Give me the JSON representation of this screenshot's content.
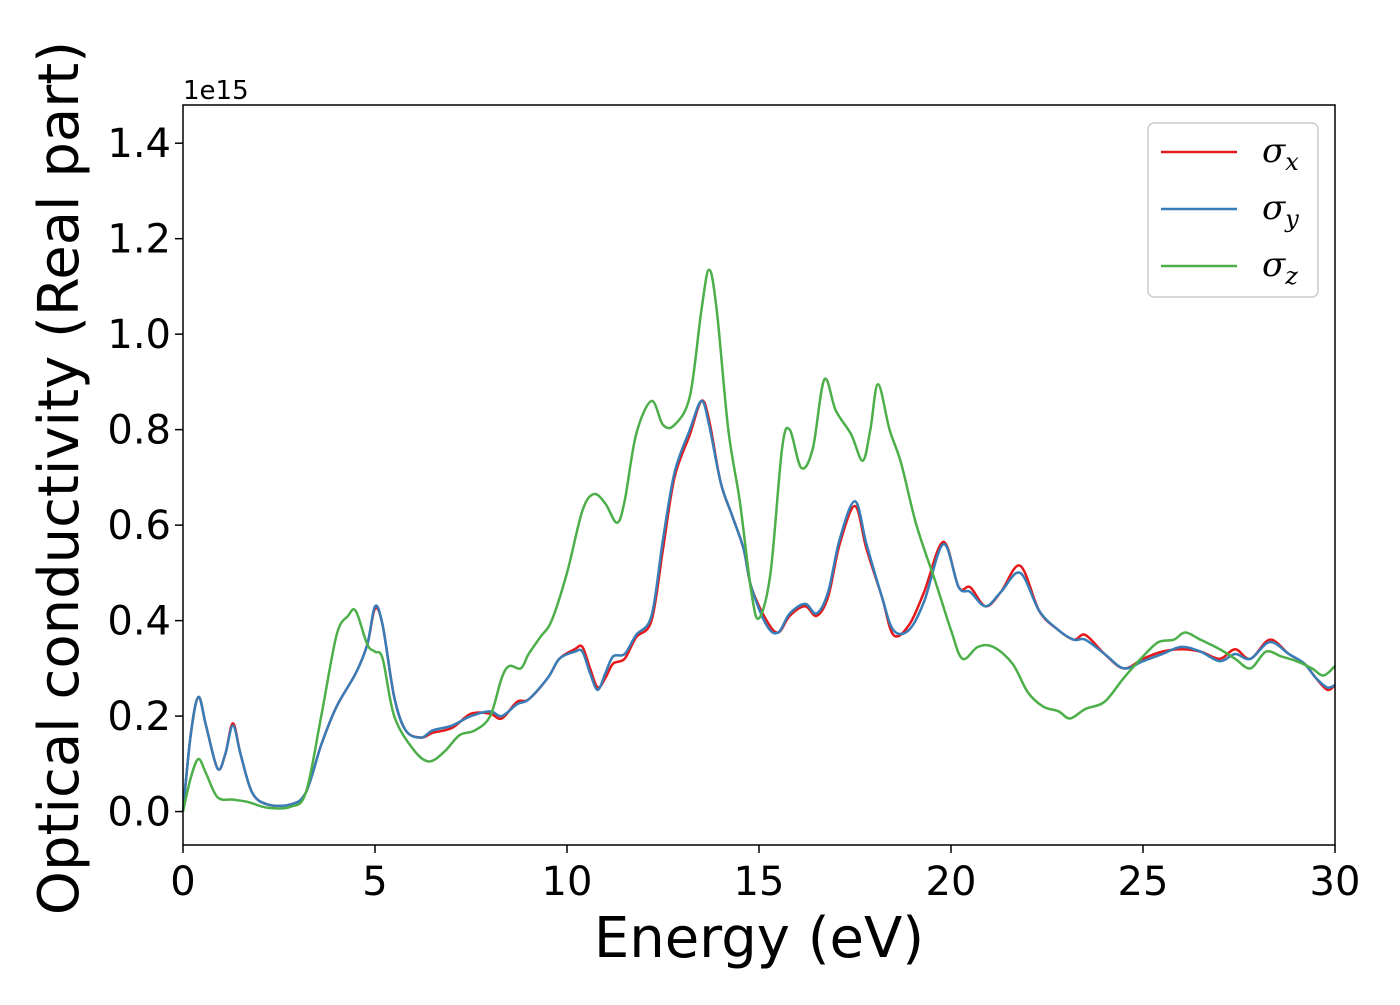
{
  "chart_data": {
    "type": "line",
    "xlabel": "Energy (eV)",
    "ylabel": "Optical conductivity (Real part)",
    "y_offset_label": "1e15",
    "xlim": [
      0,
      30
    ],
    "ylim": [
      -0.07,
      1.48
    ],
    "xticks": [
      0,
      5,
      10,
      15,
      20,
      25,
      30
    ],
    "xtick_labels": [
      "0",
      "5",
      "10",
      "15",
      "20",
      "25",
      "30"
    ],
    "yticks": [
      0.0,
      0.2,
      0.4,
      0.6,
      0.8,
      1.0,
      1.2,
      1.4
    ],
    "ytick_labels": [
      "0.0",
      "0.2",
      "0.4",
      "0.6",
      "0.8",
      "1.0",
      "1.2",
      "1.4"
    ],
    "grid": false,
    "legend_position": "top-right",
    "series": [
      {
        "name": "σx",
        "legend_symbol": "σ",
        "legend_subscript": "x",
        "color": "#e41a1c",
        "points": [
          [
            0,
            0.0
          ],
          [
            0.2,
            0.16
          ],
          [
            0.4,
            0.24
          ],
          [
            0.6,
            0.18
          ],
          [
            0.9,
            0.09
          ],
          [
            1.1,
            0.12
          ],
          [
            1.3,
            0.185
          ],
          [
            1.5,
            0.12
          ],
          [
            1.8,
            0.04
          ],
          [
            2.2,
            0.015
          ],
          [
            2.8,
            0.015
          ],
          [
            3.2,
            0.04
          ],
          [
            3.6,
            0.14
          ],
          [
            4.0,
            0.22
          ],
          [
            4.5,
            0.29
          ],
          [
            4.8,
            0.35
          ],
          [
            5.0,
            0.425
          ],
          [
            5.2,
            0.39
          ],
          [
            5.5,
            0.24
          ],
          [
            5.8,
            0.17
          ],
          [
            6.2,
            0.155
          ],
          [
            6.5,
            0.165
          ],
          [
            7.0,
            0.175
          ],
          [
            7.5,
            0.205
          ],
          [
            8.0,
            0.205
          ],
          [
            8.3,
            0.195
          ],
          [
            8.7,
            0.23
          ],
          [
            9.0,
            0.235
          ],
          [
            9.5,
            0.28
          ],
          [
            9.8,
            0.32
          ],
          [
            10.2,
            0.34
          ],
          [
            10.4,
            0.345
          ],
          [
            10.6,
            0.3
          ],
          [
            10.8,
            0.26
          ],
          [
            11.0,
            0.28
          ],
          [
            11.2,
            0.31
          ],
          [
            11.5,
            0.32
          ],
          [
            11.8,
            0.365
          ],
          [
            12.2,
            0.4
          ],
          [
            12.5,
            0.55
          ],
          [
            12.8,
            0.7
          ],
          [
            13.2,
            0.79
          ],
          [
            13.5,
            0.86
          ],
          [
            13.7,
            0.82
          ],
          [
            14.0,
            0.69
          ],
          [
            14.3,
            0.62
          ],
          [
            14.6,
            0.55
          ],
          [
            14.8,
            0.47
          ],
          [
            15.2,
            0.4
          ],
          [
            15.5,
            0.375
          ],
          [
            15.8,
            0.41
          ],
          [
            16.2,
            0.43
          ],
          [
            16.5,
            0.41
          ],
          [
            16.8,
            0.45
          ],
          [
            17.1,
            0.56
          ],
          [
            17.5,
            0.64
          ],
          [
            17.8,
            0.55
          ],
          [
            18.2,
            0.45
          ],
          [
            18.5,
            0.37
          ],
          [
            18.9,
            0.39
          ],
          [
            19.3,
            0.46
          ],
          [
            19.8,
            0.565
          ],
          [
            20.2,
            0.47
          ],
          [
            20.5,
            0.47
          ],
          [
            20.9,
            0.43
          ],
          [
            21.3,
            0.46
          ],
          [
            21.8,
            0.515
          ],
          [
            22.3,
            0.42
          ],
          [
            22.8,
            0.38
          ],
          [
            23.2,
            0.36
          ],
          [
            23.5,
            0.37
          ],
          [
            24.0,
            0.33
          ],
          [
            24.5,
            0.3
          ],
          [
            25.0,
            0.32
          ],
          [
            25.5,
            0.335
          ],
          [
            26.0,
            0.34
          ],
          [
            26.5,
            0.335
          ],
          [
            27.0,
            0.32
          ],
          [
            27.4,
            0.34
          ],
          [
            27.8,
            0.32
          ],
          [
            28.3,
            0.36
          ],
          [
            28.8,
            0.33
          ],
          [
            29.2,
            0.31
          ],
          [
            29.5,
            0.28
          ],
          [
            29.8,
            0.255
          ],
          [
            30.0,
            0.265
          ]
        ]
      },
      {
        "name": "σy",
        "legend_symbol": "σ",
        "legend_subscript": "y",
        "color": "#377eb8",
        "points": [
          [
            0,
            0.0
          ],
          [
            0.2,
            0.16
          ],
          [
            0.4,
            0.24
          ],
          [
            0.6,
            0.18
          ],
          [
            0.9,
            0.09
          ],
          [
            1.1,
            0.12
          ],
          [
            1.3,
            0.18
          ],
          [
            1.5,
            0.12
          ],
          [
            1.8,
            0.04
          ],
          [
            2.2,
            0.015
          ],
          [
            2.8,
            0.015
          ],
          [
            3.2,
            0.04
          ],
          [
            3.6,
            0.14
          ],
          [
            4.0,
            0.22
          ],
          [
            4.5,
            0.29
          ],
          [
            4.8,
            0.35
          ],
          [
            5.0,
            0.43
          ],
          [
            5.2,
            0.39
          ],
          [
            5.5,
            0.24
          ],
          [
            5.8,
            0.17
          ],
          [
            6.2,
            0.155
          ],
          [
            6.5,
            0.17
          ],
          [
            7.0,
            0.18
          ],
          [
            7.5,
            0.2
          ],
          [
            8.0,
            0.21
          ],
          [
            8.3,
            0.2
          ],
          [
            8.7,
            0.225
          ],
          [
            9.0,
            0.235
          ],
          [
            9.5,
            0.28
          ],
          [
            9.8,
            0.32
          ],
          [
            10.2,
            0.335
          ],
          [
            10.4,
            0.335
          ],
          [
            10.6,
            0.29
          ],
          [
            10.8,
            0.255
          ],
          [
            11.0,
            0.29
          ],
          [
            11.2,
            0.325
          ],
          [
            11.5,
            0.33
          ],
          [
            11.8,
            0.37
          ],
          [
            12.2,
            0.41
          ],
          [
            12.5,
            0.57
          ],
          [
            12.8,
            0.71
          ],
          [
            13.2,
            0.8
          ],
          [
            13.5,
            0.86
          ],
          [
            13.7,
            0.81
          ],
          [
            14.0,
            0.69
          ],
          [
            14.3,
            0.62
          ],
          [
            14.6,
            0.55
          ],
          [
            14.8,
            0.47
          ],
          [
            15.2,
            0.39
          ],
          [
            15.5,
            0.375
          ],
          [
            15.8,
            0.415
          ],
          [
            16.2,
            0.435
          ],
          [
            16.5,
            0.415
          ],
          [
            16.8,
            0.46
          ],
          [
            17.1,
            0.57
          ],
          [
            17.5,
            0.65
          ],
          [
            17.8,
            0.56
          ],
          [
            18.2,
            0.45
          ],
          [
            18.5,
            0.38
          ],
          [
            18.9,
            0.38
          ],
          [
            19.3,
            0.44
          ],
          [
            19.8,
            0.56
          ],
          [
            20.2,
            0.47
          ],
          [
            20.5,
            0.46
          ],
          [
            20.9,
            0.43
          ],
          [
            21.3,
            0.46
          ],
          [
            21.8,
            0.5
          ],
          [
            22.3,
            0.42
          ],
          [
            22.8,
            0.38
          ],
          [
            23.2,
            0.36
          ],
          [
            23.5,
            0.36
          ],
          [
            24.0,
            0.33
          ],
          [
            24.5,
            0.3
          ],
          [
            25.0,
            0.315
          ],
          [
            25.5,
            0.33
          ],
          [
            26.0,
            0.345
          ],
          [
            26.5,
            0.335
          ],
          [
            27.0,
            0.315
          ],
          [
            27.4,
            0.33
          ],
          [
            27.8,
            0.32
          ],
          [
            28.3,
            0.355
          ],
          [
            28.8,
            0.33
          ],
          [
            29.2,
            0.31
          ],
          [
            29.5,
            0.28
          ],
          [
            29.8,
            0.26
          ],
          [
            30.0,
            0.265
          ]
        ]
      },
      {
        "name": "σz",
        "legend_symbol": "σ",
        "legend_subscript": "z",
        "color": "#4daf4a",
        "points": [
          [
            0,
            0.0
          ],
          [
            0.2,
            0.07
          ],
          [
            0.4,
            0.11
          ],
          [
            0.6,
            0.08
          ],
          [
            0.9,
            0.03
          ],
          [
            1.3,
            0.025
          ],
          [
            1.7,
            0.02
          ],
          [
            2.2,
            0.008
          ],
          [
            2.8,
            0.01
          ],
          [
            3.2,
            0.04
          ],
          [
            3.6,
            0.2
          ],
          [
            4.0,
            0.37
          ],
          [
            4.3,
            0.41
          ],
          [
            4.5,
            0.42
          ],
          [
            4.8,
            0.35
          ],
          [
            5.0,
            0.335
          ],
          [
            5.2,
            0.32
          ],
          [
            5.5,
            0.2
          ],
          [
            6.0,
            0.13
          ],
          [
            6.4,
            0.105
          ],
          [
            6.8,
            0.125
          ],
          [
            7.2,
            0.16
          ],
          [
            7.6,
            0.17
          ],
          [
            8.0,
            0.2
          ],
          [
            8.3,
            0.28
          ],
          [
            8.5,
            0.305
          ],
          [
            8.8,
            0.3
          ],
          [
            9.0,
            0.33
          ],
          [
            9.3,
            0.365
          ],
          [
            9.6,
            0.4
          ],
          [
            10.0,
            0.5
          ],
          [
            10.4,
            0.63
          ],
          [
            10.7,
            0.665
          ],
          [
            11.0,
            0.645
          ],
          [
            11.3,
            0.605
          ],
          [
            11.5,
            0.65
          ],
          [
            11.8,
            0.79
          ],
          [
            12.2,
            0.86
          ],
          [
            12.5,
            0.81
          ],
          [
            12.8,
            0.81
          ],
          [
            13.2,
            0.87
          ],
          [
            13.5,
            1.05
          ],
          [
            13.7,
            1.135
          ],
          [
            13.9,
            1.05
          ],
          [
            14.2,
            0.8
          ],
          [
            14.5,
            0.65
          ],
          [
            14.8,
            0.46
          ],
          [
            15.0,
            0.405
          ],
          [
            15.3,
            0.5
          ],
          [
            15.6,
            0.76
          ],
          [
            15.8,
            0.8
          ],
          [
            16.1,
            0.72
          ],
          [
            16.4,
            0.76
          ],
          [
            16.7,
            0.905
          ],
          [
            17.0,
            0.84
          ],
          [
            17.4,
            0.79
          ],
          [
            17.7,
            0.735
          ],
          [
            17.9,
            0.8
          ],
          [
            18.1,
            0.895
          ],
          [
            18.4,
            0.8
          ],
          [
            18.7,
            0.73
          ],
          [
            19.1,
            0.6
          ],
          [
            19.6,
            0.48
          ],
          [
            20.0,
            0.38
          ],
          [
            20.3,
            0.32
          ],
          [
            20.7,
            0.345
          ],
          [
            21.1,
            0.345
          ],
          [
            21.6,
            0.31
          ],
          [
            22.0,
            0.25
          ],
          [
            22.4,
            0.22
          ],
          [
            22.8,
            0.21
          ],
          [
            23.1,
            0.195
          ],
          [
            23.5,
            0.215
          ],
          [
            24.0,
            0.23
          ],
          [
            24.5,
            0.28
          ],
          [
            25.0,
            0.325
          ],
          [
            25.4,
            0.355
          ],
          [
            25.8,
            0.36
          ],
          [
            26.1,
            0.375
          ],
          [
            26.5,
            0.36
          ],
          [
            27.0,
            0.34
          ],
          [
            27.4,
            0.32
          ],
          [
            27.8,
            0.3
          ],
          [
            28.2,
            0.335
          ],
          [
            28.6,
            0.325
          ],
          [
            29.0,
            0.315
          ],
          [
            29.4,
            0.3
          ],
          [
            29.7,
            0.285
          ],
          [
            30.0,
            0.305
          ]
        ]
      }
    ]
  }
}
